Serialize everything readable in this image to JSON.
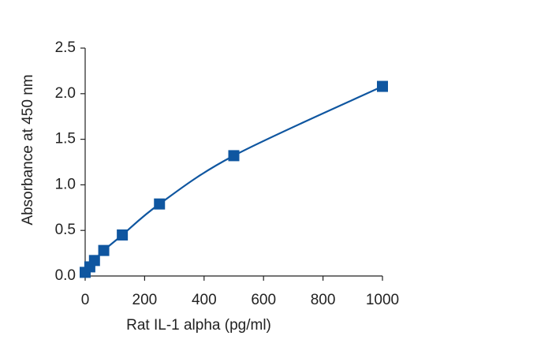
{
  "chart_data": {
    "type": "scatter",
    "x_label": "Rat IL-1 alpha (pg/ml)",
    "y_label": "Absorbance at 450 nm",
    "series": [
      {
        "color": "#0f56a0",
        "x": [
          0,
          15.6,
          31.25,
          62.5,
          125,
          250,
          500,
          1000
        ],
        "values": [
          0.04,
          0.1,
          0.17,
          0.28,
          0.45,
          0.79,
          1.32,
          2.08
        ]
      }
    ],
    "xlim": [
      0,
      1000
    ],
    "xticks": [
      0,
      200,
      400,
      600,
      800,
      1000
    ],
    "ylim": [
      0,
      2.5
    ],
    "yticks": [
      {
        "value": 0,
        "label": "0.0"
      },
      0.5,
      {
        "value": 1,
        "label": "1.0"
      },
      1.5,
      {
        "value": 2,
        "label": "2.0"
      },
      2.5
    ]
  }
}
